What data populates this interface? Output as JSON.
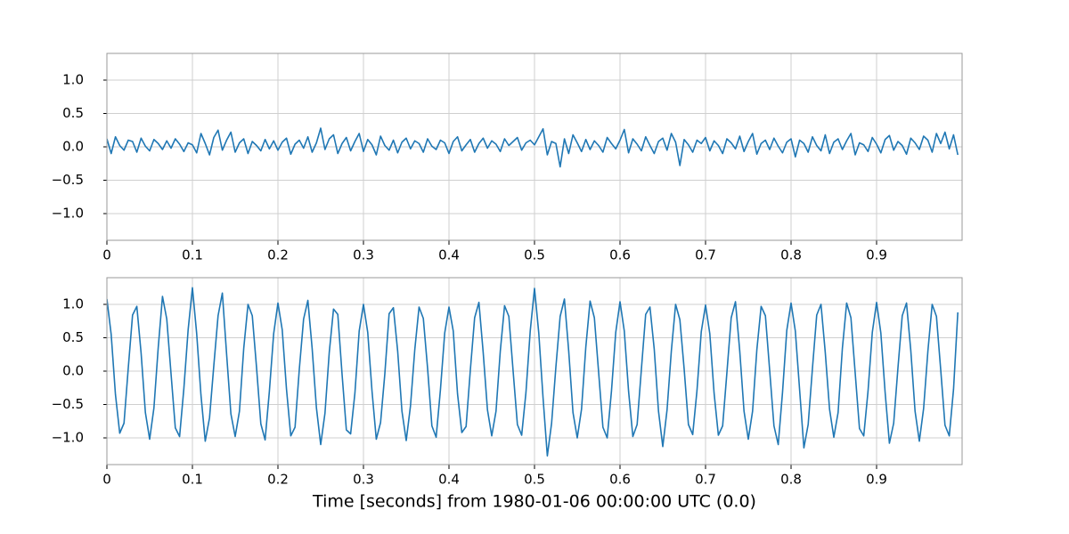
{
  "chart_data": [
    {
      "type": "line",
      "x": [
        0,
        0.005,
        0.01,
        0.015,
        0.02,
        0.025,
        0.03,
        0.035,
        0.04,
        0.045,
        0.05,
        0.055,
        0.06,
        0.065,
        0.07,
        0.075,
        0.08,
        0.085,
        0.09,
        0.095,
        0.1,
        0.105,
        0.11,
        0.115,
        0.12,
        0.125,
        0.13,
        0.135,
        0.14,
        0.145,
        0.15,
        0.155,
        0.16,
        0.165,
        0.17,
        0.175,
        0.18,
        0.185,
        0.19,
        0.195,
        0.2,
        0.205,
        0.21,
        0.215,
        0.22,
        0.225,
        0.23,
        0.235,
        0.24,
        0.245,
        0.25,
        0.255,
        0.26,
        0.265,
        0.27,
        0.275,
        0.28,
        0.285,
        0.29,
        0.295,
        0.3,
        0.305,
        0.31,
        0.315,
        0.32,
        0.325,
        0.33,
        0.335,
        0.34,
        0.345,
        0.35,
        0.355,
        0.36,
        0.365,
        0.37,
        0.375,
        0.38,
        0.385,
        0.39,
        0.395,
        0.4,
        0.405,
        0.41,
        0.415,
        0.42,
        0.425,
        0.43,
        0.435,
        0.44,
        0.445,
        0.45,
        0.455,
        0.46,
        0.465,
        0.47,
        0.475,
        0.48,
        0.485,
        0.49,
        0.495,
        0.5,
        0.505,
        0.51,
        0.515,
        0.52,
        0.525,
        0.53,
        0.535,
        0.54,
        0.545,
        0.55,
        0.555,
        0.56,
        0.565,
        0.57,
        0.575,
        0.58,
        0.585,
        0.59,
        0.595,
        0.6,
        0.605,
        0.61,
        0.615,
        0.62,
        0.625,
        0.63,
        0.635,
        0.64,
        0.645,
        0.65,
        0.655,
        0.66,
        0.665,
        0.67,
        0.675,
        0.68,
        0.685,
        0.69,
        0.695,
        0.7,
        0.705,
        0.71,
        0.715,
        0.72,
        0.725,
        0.73,
        0.735,
        0.74,
        0.745,
        0.75,
        0.755,
        0.76,
        0.765,
        0.77,
        0.775,
        0.78,
        0.785,
        0.79,
        0.795,
        0.8,
        0.805,
        0.81,
        0.815,
        0.82,
        0.825,
        0.83,
        0.835,
        0.84,
        0.845,
        0.85,
        0.855,
        0.86,
        0.865,
        0.87,
        0.875,
        0.88,
        0.885,
        0.89,
        0.895,
        0.9,
        0.905,
        0.91,
        0.915,
        0.92,
        0.925,
        0.93,
        0.935,
        0.94,
        0.945,
        0.95,
        0.955,
        0.96,
        0.965,
        0.97,
        0.975,
        0.98,
        0.985,
        0.99,
        0.995
      ],
      "series": [
        {
          "color": "#1f77b4",
          "values": [
            0.12,
            -0.1,
            0.15,
            0.02,
            -0.05,
            0.1,
            0.08,
            -0.08,
            0.13,
            0.01,
            -0.06,
            0.11,
            0.05,
            -0.04,
            0.09,
            -0.02,
            0.12,
            0.04,
            -0.07,
            0.06,
            0.03,
            -0.09,
            0.2,
            0.05,
            -0.12,
            0.14,
            0.25,
            -0.05,
            0.1,
            0.22,
            -0.08,
            0.06,
            0.12,
            -0.1,
            0.08,
            0.02,
            -0.06,
            0.11,
            -0.03,
            0.09,
            -0.05,
            0.07,
            0.13,
            -0.11,
            0.04,
            0.1,
            -0.02,
            0.15,
            -0.08,
            0.06,
            0.28,
            -0.04,
            0.12,
            0.18,
            -0.1,
            0.05,
            0.14,
            -0.06,
            0.08,
            0.2,
            -0.07,
            0.11,
            0.03,
            -0.12,
            0.16,
            0.02,
            -0.05,
            0.1,
            -0.09,
            0.07,
            0.13,
            -0.03,
            0.09,
            0.05,
            -0.08,
            0.12,
            0.01,
            -0.04,
            0.1,
            0.06,
            -0.1,
            0.08,
            0.15,
            -0.06,
            0.03,
            0.11,
            -0.08,
            0.05,
            0.13,
            -0.02,
            0.09,
            0.04,
            -0.07,
            0.12,
            0.02,
            0.08,
            0.14,
            -0.05,
            0.06,
            0.1,
            0.03,
            0.15,
            0.27,
            -0.12,
            0.08,
            0.05,
            -0.3,
            0.12,
            -0.1,
            0.18,
            0.06,
            -0.07,
            0.11,
            -0.04,
            0.09,
            0.02,
            -0.08,
            0.14,
            0.05,
            -0.03,
            0.1,
            0.26,
            -0.09,
            0.12,
            0.04,
            -0.06,
            0.15,
            0.02,
            -0.1,
            0.08,
            0.13,
            -0.05,
            0.2,
            0.07,
            -0.28,
            0.11,
            0.03,
            -0.08,
            0.1,
            0.05,
            0.14,
            -0.06,
            0.09,
            0.02,
            -0.1,
            0.12,
            0.06,
            -0.03,
            0.16,
            -0.07,
            0.08,
            0.2,
            -0.11,
            0.05,
            0.1,
            -0.04,
            0.13,
            0.01,
            -0.09,
            0.07,
            0.12,
            -0.15,
            0.1,
            0.05,
            -0.08,
            0.15,
            0.02,
            -0.06,
            0.18,
            -0.1,
            0.07,
            0.12,
            -0.04,
            0.09,
            0.2,
            -0.12,
            0.06,
            0.03,
            -0.07,
            0.14,
            0.04,
            -0.09,
            0.11,
            0.17,
            -0.05,
            0.08,
            0.02,
            -0.11,
            0.13,
            0.06,
            -0.04,
            0.16,
            0.1,
            -0.08,
            0.2,
            0.05,
            0.22,
            -0.03,
            0.18,
            -0.12
          ]
        }
      ],
      "xlim": [
        0,
        1
      ],
      "ylim": [
        -1.4,
        1.4
      ],
      "xticks": [
        0,
        0.1,
        0.2,
        0.3,
        0.4,
        0.5,
        0.6,
        0.7,
        0.8,
        0.9
      ],
      "yticks": [
        {
          "value": -1,
          "label": "−1.0"
        },
        {
          "value": -0.5,
          "label": "−0.5"
        },
        {
          "value": 0,
          "label": "0.0"
        },
        {
          "value": 0.5,
          "label": "0.5"
        },
        {
          "value": 1,
          "label": "1.0"
        }
      ],
      "grid": true
    },
    {
      "type": "line",
      "x": [
        0,
        0.005,
        0.01,
        0.015,
        0.02,
        0.025,
        0.03,
        0.035,
        0.04,
        0.045,
        0.05,
        0.055,
        0.06,
        0.065,
        0.07,
        0.075,
        0.08,
        0.085,
        0.09,
        0.095,
        0.1,
        0.105,
        0.11,
        0.115,
        0.12,
        0.125,
        0.13,
        0.135,
        0.14,
        0.145,
        0.15,
        0.155,
        0.16,
        0.165,
        0.17,
        0.175,
        0.18,
        0.185,
        0.19,
        0.195,
        0.2,
        0.205,
        0.21,
        0.215,
        0.22,
        0.225,
        0.23,
        0.235,
        0.24,
        0.245,
        0.25,
        0.255,
        0.26,
        0.265,
        0.27,
        0.275,
        0.28,
        0.285,
        0.29,
        0.295,
        0.3,
        0.305,
        0.31,
        0.315,
        0.32,
        0.325,
        0.33,
        0.335,
        0.34,
        0.345,
        0.35,
        0.355,
        0.36,
        0.365,
        0.37,
        0.375,
        0.38,
        0.385,
        0.39,
        0.395,
        0.4,
        0.405,
        0.41,
        0.415,
        0.42,
        0.425,
        0.43,
        0.435,
        0.44,
        0.445,
        0.45,
        0.455,
        0.46,
        0.465,
        0.47,
        0.475,
        0.48,
        0.485,
        0.49,
        0.495,
        0.5,
        0.505,
        0.51,
        0.515,
        0.52,
        0.525,
        0.53,
        0.535,
        0.54,
        0.545,
        0.55,
        0.555,
        0.56,
        0.565,
        0.57,
        0.575,
        0.58,
        0.585,
        0.59,
        0.595,
        0.6,
        0.605,
        0.61,
        0.615,
        0.62,
        0.625,
        0.63,
        0.635,
        0.64,
        0.645,
        0.65,
        0.655,
        0.66,
        0.665,
        0.67,
        0.675,
        0.68,
        0.685,
        0.69,
        0.695,
        0.7,
        0.705,
        0.71,
        0.715,
        0.72,
        0.725,
        0.73,
        0.735,
        0.74,
        0.745,
        0.75,
        0.755,
        0.76,
        0.765,
        0.77,
        0.775,
        0.78,
        0.785,
        0.79,
        0.795,
        0.8,
        0.805,
        0.81,
        0.815,
        0.82,
        0.825,
        0.83,
        0.835,
        0.84,
        0.845,
        0.85,
        0.855,
        0.86,
        0.865,
        0.87,
        0.875,
        0.88,
        0.885,
        0.89,
        0.895,
        0.9,
        0.905,
        0.91,
        0.915,
        0.92,
        0.925,
        0.93,
        0.935,
        0.94,
        0.945,
        0.95,
        0.955,
        0.96,
        0.965,
        0.97,
        0.975,
        0.98,
        0.985,
        0.99,
        0.995
      ],
      "series": [
        {
          "color": "#1f77b4",
          "values": [
            1.08,
            0.55,
            -0.35,
            -0.93,
            -0.78,
            0.05,
            0.84,
            0.97,
            0.27,
            -0.62,
            -1.02,
            -0.55,
            0.35,
            1.12,
            0.78,
            -0.04,
            -0.85,
            -0.98,
            -0.26,
            0.62,
            1.25,
            0.56,
            -0.36,
            -1.05,
            -0.7,
            0.08,
            0.83,
            1.17,
            0.25,
            -0.64,
            -0.98,
            -0.6,
            0.34,
            1.0,
            0.83,
            0.05,
            -0.79,
            -1.03,
            -0.3,
            0.56,
            1.02,
            0.62,
            -0.27,
            -0.97,
            -0.84,
            0.03,
            0.78,
            1.06,
            0.34,
            -0.55,
            -1.1,
            -0.63,
            0.28,
            0.93,
            0.85,
            -0.05,
            -0.88,
            -0.94,
            -0.33,
            0.6,
            1.0,
            0.58,
            -0.3,
            -1.02,
            -0.77,
            -0.04,
            0.86,
            0.95,
            0.3,
            -0.6,
            -1.04,
            -0.52,
            0.32,
            0.96,
            0.79,
            0.04,
            -0.82,
            -0.99,
            -0.28,
            0.57,
            0.96,
            0.6,
            -0.34,
            -0.92,
            -0.83,
            0.02,
            0.8,
            1.03,
            0.28,
            -0.58,
            -0.97,
            -0.6,
            0.3,
            0.98,
            0.82,
            0.0,
            -0.8,
            -0.96,
            -0.32,
            0.6,
            1.24,
            0.57,
            -0.4,
            -1.27,
            -0.78,
            0.06,
            0.82,
            1.08,
            0.3,
            -0.62,
            -1.0,
            -0.57,
            0.36,
            1.05,
            0.8,
            -0.02,
            -0.84,
            -1.0,
            -0.3,
            0.58,
            1.04,
            0.6,
            -0.3,
            -0.98,
            -0.8,
            0.03,
            0.85,
            0.96,
            0.33,
            -0.6,
            -1.13,
            -0.58,
            0.3,
            1.0,
            0.77,
            0.03,
            -0.8,
            -0.95,
            -0.29,
            0.59,
            0.99,
            0.56,
            -0.33,
            -0.96,
            -0.82,
            -0.02,
            0.8,
            1.04,
            0.3,
            -0.6,
            -1.02,
            -0.6,
            0.32,
            0.97,
            0.83,
            0.01,
            -0.82,
            -1.1,
            -0.32,
            0.61,
            1.02,
            0.6,
            -0.28,
            -1.15,
            -0.8,
            0.04,
            0.84,
            1.0,
            0.28,
            -0.57,
            -0.99,
            -0.62,
            0.34,
            1.02,
            0.8,
            -0.03,
            -0.86,
            -0.97,
            -0.3,
            0.58,
            1.03,
            0.57,
            -0.32,
            -1.08,
            -0.78,
            0.05,
            0.83,
            1.02,
            0.31,
            -0.6,
            -1.05,
            -0.56,
            0.3,
            1.0,
            0.82,
            0.02,
            -0.81,
            -0.97,
            -0.27,
            0.88
          ]
        }
      ],
      "xlim": [
        0,
        1
      ],
      "ylim": [
        -1.4,
        1.4
      ],
      "xticks": [
        0,
        0.1,
        0.2,
        0.3,
        0.4,
        0.5,
        0.6,
        0.7,
        0.8,
        0.9
      ],
      "yticks": [
        {
          "value": -1,
          "label": "−1.0"
        },
        {
          "value": -0.5,
          "label": "−0.5"
        },
        {
          "value": 0,
          "label": "0.0"
        },
        {
          "value": 0.5,
          "label": "0.5"
        },
        {
          "value": 1,
          "label": "1.0"
        }
      ],
      "grid": true,
      "xlabel": "Time [seconds] from 1980-01-06 00:00:00 UTC (0.0)"
    }
  ]
}
